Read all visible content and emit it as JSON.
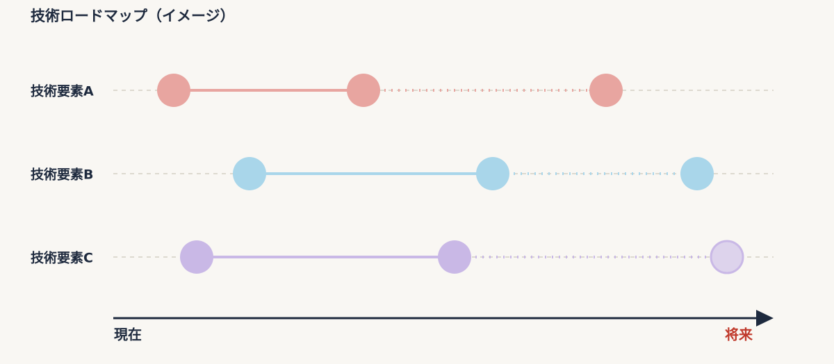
{
  "title": "技術ロードマップ（イメージ）",
  "rows": [
    {
      "label": "技術要素A"
    },
    {
      "label": "技術要素B"
    },
    {
      "label": "技術要素C"
    }
  ],
  "axis": {
    "start": "現在",
    "end": "将来"
  }
}
